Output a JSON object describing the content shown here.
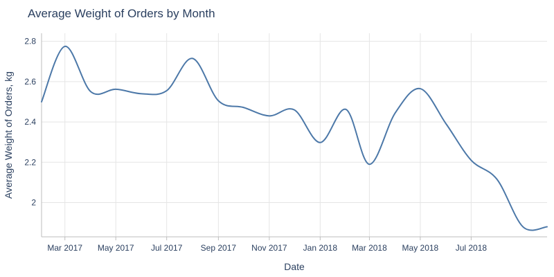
{
  "chart_data": {
    "type": "line",
    "title": "Average Weight of Orders by Month",
    "xlabel": "Date",
    "ylabel": "Average Weight of Orders, kg",
    "x_tick_labels": [
      "Mar 2017",
      "May 2017",
      "Jul 2017",
      "Sep 2017",
      "Nov 2017",
      "Jan 2018",
      "Mar 2018",
      "May 2018",
      "Jul 2018"
    ],
    "y_tick_labels": [
      "2",
      "2.2",
      "2.4",
      "2.6",
      "2.8"
    ],
    "y_ticks": [
      2.0,
      2.2,
      2.4,
      2.6,
      2.8
    ],
    "xlim": [
      "2017-02-01",
      "2018-09-30"
    ],
    "ylim": [
      1.83,
      2.84
    ],
    "grid": true,
    "line_color": "#4c78a8",
    "series": [
      {
        "x": [
          "2017-02-01",
          "2017-03-01",
          "2017-04-01",
          "2017-05-01",
          "2017-06-01",
          "2017-07-01",
          "2017-08-01",
          "2017-09-01",
          "2017-10-01",
          "2017-11-01",
          "2017-12-01",
          "2018-01-01",
          "2018-02-01",
          "2018-03-01",
          "2018-04-01",
          "2018-05-01",
          "2018-06-01",
          "2018-07-01",
          "2018-08-01",
          "2018-09-01",
          "2018-09-30"
        ],
        "y": [
          2.5,
          2.775,
          2.55,
          2.562,
          2.54,
          2.555,
          2.715,
          2.505,
          2.472,
          2.43,
          2.46,
          2.298,
          2.462,
          2.19,
          2.445,
          2.565,
          2.39,
          2.21,
          2.115,
          1.88,
          1.88
        ]
      }
    ]
  }
}
